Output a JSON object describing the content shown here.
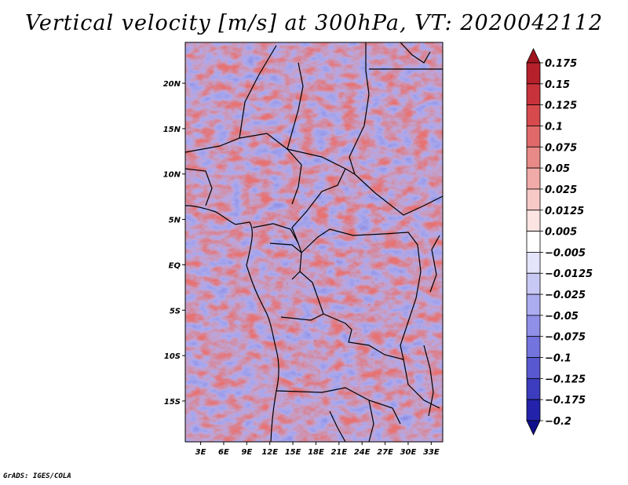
{
  "title": "Vertical velocity [m/s] at 300hPa, VT: 2020042112",
  "credit": "GrADS: IGES/COLA",
  "map": {
    "lat_labels": [
      "20N",
      "15N",
      "10N",
      "5N",
      "EQ",
      "5S",
      "10S",
      "15S"
    ],
    "lat_values": [
      20,
      15,
      10,
      5,
      0,
      -5,
      -10,
      -15
    ],
    "lon_labels": [
      "3E",
      "6E",
      "9E",
      "12E",
      "15E",
      "18E",
      "21E",
      "24E",
      "27E",
      "30E",
      "33E"
    ],
    "lon_values": [
      3,
      6,
      9,
      12,
      15,
      18,
      21,
      24,
      27,
      30,
      33
    ],
    "lon_range": [
      1,
      34.5
    ],
    "lat_range": [
      -19.5,
      24.5
    ]
  },
  "colorbar": {
    "labels": [
      "0.175",
      "0.15",
      "0.125",
      "0.1",
      "0.075",
      "0.05",
      "0.025",
      "0.0125",
      "0.005",
      "−0.005",
      "−0.0125",
      "−0.025",
      "−0.05",
      "−0.075",
      "−0.1",
      "−0.125",
      "−0.175",
      "−0.2"
    ],
    "colors": [
      "#a0141e",
      "#b5202a",
      "#c8323a",
      "#d64a4e",
      "#e06a6a",
      "#e88a88",
      "#f0aaa8",
      "#f6c8c6",
      "#fbe4e2",
      "#ffffff",
      "#e4e4fa",
      "#c8c8f4",
      "#acacf0",
      "#9090e8",
      "#7474de",
      "#5858d0",
      "#3c3cbe",
      "#2222aa",
      "#10108c"
    ]
  }
}
